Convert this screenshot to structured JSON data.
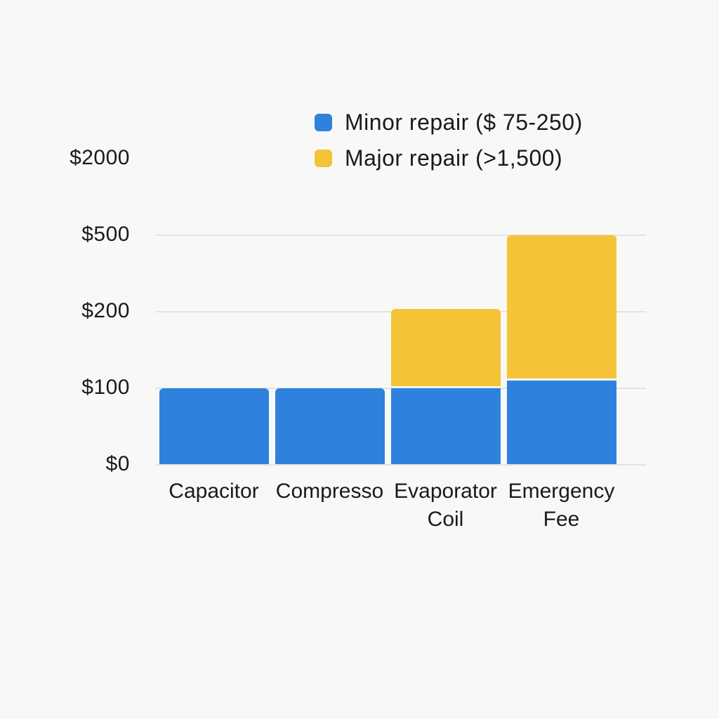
{
  "page": {
    "background": "#f8f8f6",
    "text_color": "#1a1a1c",
    "gridline_color": "#e2e2e0"
  },
  "legend": {
    "items": [
      {
        "label": "Minor repair ($ 75-250)",
        "color": "#2e82de"
      },
      {
        "label": "Major repair (>1,500)",
        "color": "#f5c338"
      }
    ]
  },
  "chart_data": {
    "type": "bar",
    "stacked": true,
    "title": "",
    "xlabel": "",
    "ylabel": "",
    "categories": [
      "Capacitor",
      "Compresso",
      "Evaporator Coil",
      "Emergency Fee"
    ],
    "series": [
      {
        "name": "Minor repair ($ 75-250)",
        "color": "#2e82de",
        "values": [
          100,
          100,
          100,
          110
        ]
      },
      {
        "name": "Major repair (>1,500)",
        "color": "#f5c338",
        "values": [
          0,
          0,
          110,
          395
        ]
      }
    ],
    "stack_totals": [
      100,
      100,
      210,
      505
    ],
    "y_axis": {
      "ticks": [
        {
          "label": "$0",
          "value": 0,
          "gridline": true
        },
        {
          "label": "$100",
          "value": 100,
          "gridline": true
        },
        {
          "label": "$200",
          "value": 200,
          "gridline": true
        },
        {
          "label": "$500",
          "value": 500,
          "gridline": true
        },
        {
          "label": "$2000",
          "value": 2000,
          "gridline": false
        }
      ],
      "scale": "non-linear (ticks evenly spaced)"
    },
    "legend_position": "top",
    "grid": "horizontal"
  }
}
